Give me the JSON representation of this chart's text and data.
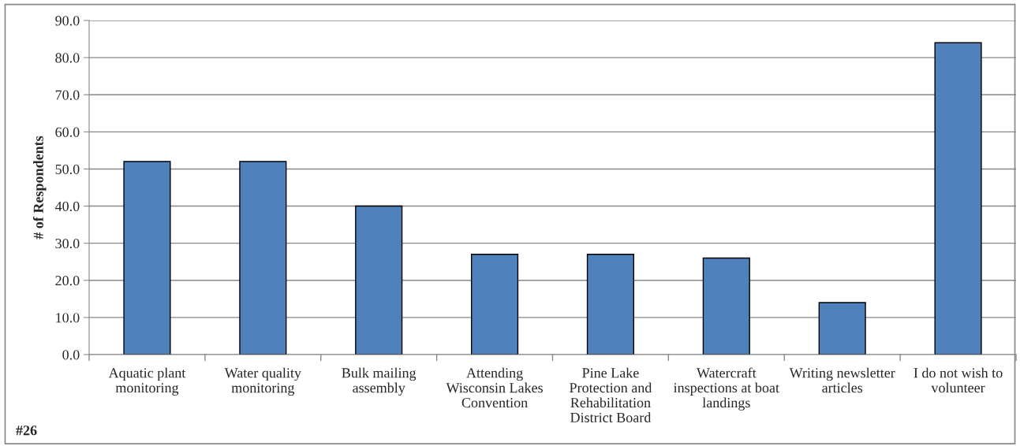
{
  "chart_data": {
    "type": "bar",
    "ylabel": "# of Respondents",
    "categories": [
      "Aquatic plant\nmonitoring",
      "Water quality\nmonitoring",
      "Bulk mailing\nassembly",
      "Attending\nWisconsin Lakes\nConvention",
      "Pine Lake\nProtection and\nRehabilitation\nDistrict Board",
      "Watercraft\ninspections at boat\nlandings",
      "Writing newsletter\narticles",
      "I do not wish to\nvolunteer"
    ],
    "values": [
      52,
      52,
      40,
      27,
      27,
      26,
      14,
      84
    ],
    "color": "#4f81bd",
    "ylim": [
      0,
      90
    ],
    "yticks": [
      {
        "value": 0,
        "label": "0.0"
      },
      {
        "value": 10,
        "label": "10.0"
      },
      {
        "value": 20,
        "label": "20.0"
      },
      {
        "value": 30,
        "label": "30.0"
      },
      {
        "value": 40,
        "label": "40.0"
      },
      {
        "value": 50,
        "label": "50.0"
      },
      {
        "value": 60,
        "label": "60.0"
      },
      {
        "value": 70,
        "label": "70.0"
      },
      {
        "value": 80,
        "label": "80.0"
      },
      {
        "value": 90,
        "label": "90.0"
      }
    ],
    "grid": "y",
    "legend": false,
    "annotations": [
      "#26"
    ]
  }
}
